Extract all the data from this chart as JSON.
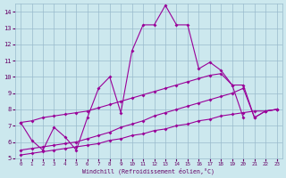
{
  "xlabel": "Windchill (Refroidissement éolien,°C)",
  "bg_color": "#cce8ee",
  "line_color": "#990099",
  "xlim": [
    -0.5,
    23.5
  ],
  "ylim": [
    5,
    14.5
  ],
  "xticks": [
    0,
    1,
    2,
    3,
    4,
    5,
    6,
    7,
    8,
    9,
    10,
    11,
    12,
    13,
    14,
    15,
    16,
    17,
    18,
    19,
    20,
    21,
    22,
    23
  ],
  "yticks": [
    5,
    6,
    7,
    8,
    9,
    10,
    11,
    12,
    13,
    14
  ],
  "series": [
    {
      "x": [
        0,
        1,
        2,
        3,
        4,
        5,
        6,
        7,
        8,
        9,
        10,
        11,
        12,
        13,
        14,
        15,
        16,
        17,
        18,
        19,
        20
      ],
      "y": [
        7.2,
        6.1,
        5.5,
        6.9,
        6.3,
        5.5,
        7.5,
        9.3,
        10.0,
        7.8,
        11.6,
        13.2,
        13.2,
        14.4,
        13.2,
        13.2,
        10.5,
        10.9,
        10.4,
        9.5,
        7.5
      ]
    },
    {
      "x": [
        0,
        1,
        2,
        3,
        4,
        5,
        6,
        7,
        8,
        9,
        10,
        11,
        12,
        13,
        14,
        15,
        16,
        17,
        18,
        19,
        20,
        21,
        22,
        23
      ],
      "y": [
        7.2,
        7.3,
        7.5,
        7.6,
        7.7,
        7.8,
        7.9,
        8.1,
        8.3,
        8.5,
        8.7,
        8.9,
        9.1,
        9.3,
        9.5,
        9.7,
        9.9,
        10.1,
        10.2,
        9.5,
        9.5,
        7.5,
        7.9,
        8.0
      ]
    },
    {
      "x": [
        0,
        1,
        2,
        3,
        4,
        5,
        6,
        7,
        8,
        9,
        10,
        11,
        12,
        13,
        14,
        15,
        16,
        17,
        18,
        19,
        20,
        21,
        22,
        23
      ],
      "y": [
        5.5,
        5.6,
        5.7,
        5.8,
        5.9,
        6.0,
        6.2,
        6.4,
        6.6,
        6.9,
        7.1,
        7.3,
        7.6,
        7.8,
        8.0,
        8.2,
        8.4,
        8.6,
        8.8,
        9.0,
        9.3,
        7.5,
        7.9,
        8.0
      ]
    },
    {
      "x": [
        0,
        1,
        2,
        3,
        4,
        5,
        6,
        7,
        8,
        9,
        10,
        11,
        12,
        13,
        14,
        15,
        16,
        17,
        18,
        19,
        20,
        21,
        22,
        23
      ],
      "y": [
        5.2,
        5.3,
        5.4,
        5.5,
        5.6,
        5.7,
        5.8,
        5.9,
        6.1,
        6.2,
        6.4,
        6.5,
        6.7,
        6.8,
        7.0,
        7.1,
        7.3,
        7.4,
        7.6,
        7.7,
        7.8,
        7.9,
        7.9,
        8.0
      ]
    }
  ]
}
